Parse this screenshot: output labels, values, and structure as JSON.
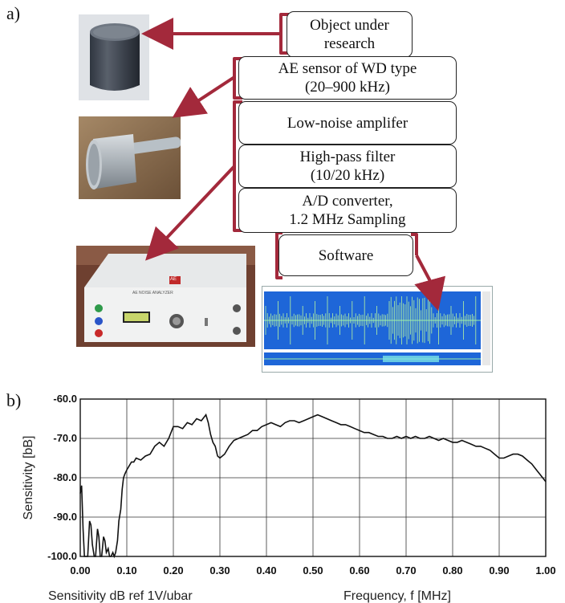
{
  "panel_a": {
    "label": "a)",
    "boxes": [
      {
        "id": "object",
        "lines": [
          "Object under",
          "research"
        ]
      },
      {
        "id": "sensor",
        "lines": [
          "AE sensor of WD type",
          "(20–900 kHz)"
        ]
      },
      {
        "id": "amplifier",
        "lines": [
          "Low-noise amplifer"
        ]
      },
      {
        "id": "filter",
        "lines": [
          "High-pass filter",
          "(10/20 kHz)"
        ]
      },
      {
        "id": "adc",
        "lines": [
          "A/D converter,",
          "1.2 MHz Sampling"
        ]
      },
      {
        "id": "software",
        "lines": [
          "Software"
        ]
      }
    ],
    "device_label": "AE NOISE ANALYZER",
    "device_badge": "AE",
    "arrow_color": "#a3293b"
  },
  "panel_b": {
    "label": "b)",
    "chart_data": {
      "type": "line",
      "xlabel": "Frequency, f  [MHz]",
      "ylabel": "Sensitivity  [bB]",
      "note": "Sensitivity dB ref 1V/ubar",
      "xlim": [
        0,
        1.0
      ],
      "ylim": [
        -100,
        -60
      ],
      "x_ticks": [
        "0.00",
        "0.10",
        "0.20",
        "0.30",
        "0.40",
        "0.50",
        "0.60",
        "0.70",
        "0.80",
        "0.90",
        "1.00"
      ],
      "y_ticks": [
        "-60.0",
        "-70.0",
        "-80.0",
        "-90.0",
        "-100.0"
      ],
      "grid": true,
      "series": [
        {
          "x": [
            0.0,
            0.003,
            0.006,
            0.009,
            0.012,
            0.016,
            0.02,
            0.023,
            0.026,
            0.03,
            0.033,
            0.037,
            0.04,
            0.043,
            0.046,
            0.05,
            0.053,
            0.056,
            0.06,
            0.063,
            0.066,
            0.07,
            0.073,
            0.076,
            0.08,
            0.083,
            0.087,
            0.09,
            0.093,
            0.096,
            0.1,
            0.105,
            0.11,
            0.115,
            0.12,
            0.13,
            0.14,
            0.15,
            0.16,
            0.17,
            0.18,
            0.19,
            0.2,
            0.21,
            0.22,
            0.23,
            0.24,
            0.25,
            0.26,
            0.27,
            0.275,
            0.28,
            0.285,
            0.29,
            0.295,
            0.3,
            0.31,
            0.32,
            0.33,
            0.34,
            0.35,
            0.36,
            0.37,
            0.38,
            0.39,
            0.4,
            0.41,
            0.42,
            0.43,
            0.44,
            0.45,
            0.46,
            0.47,
            0.48,
            0.49,
            0.5,
            0.51,
            0.52,
            0.53,
            0.54,
            0.55,
            0.56,
            0.57,
            0.58,
            0.59,
            0.6,
            0.61,
            0.62,
            0.63,
            0.64,
            0.65,
            0.66,
            0.67,
            0.68,
            0.69,
            0.7,
            0.71,
            0.72,
            0.73,
            0.74,
            0.75,
            0.76,
            0.77,
            0.78,
            0.79,
            0.8,
            0.81,
            0.82,
            0.83,
            0.84,
            0.85,
            0.86,
            0.87,
            0.88,
            0.89,
            0.9,
            0.91,
            0.92,
            0.93,
            0.94,
            0.95,
            0.96,
            0.97,
            0.98,
            0.99,
            1.0
          ],
          "y": [
            -84,
            -82,
            -93,
            -100,
            -100,
            -100,
            -91,
            -92,
            -97,
            -100,
            -100,
            -93,
            -95,
            -100,
            -100,
            -95,
            -96,
            -99,
            -98,
            -100,
            -100,
            -99,
            -100,
            -99,
            -96,
            -91,
            -88,
            -83,
            -80,
            -79,
            -78,
            -77,
            -76,
            -76,
            -75,
            -75.5,
            -74.5,
            -74,
            -72,
            -71,
            -72,
            -70,
            -67,
            -67,
            -67.5,
            -66,
            -66.5,
            -65,
            -65.5,
            -64,
            -66,
            -69,
            -71,
            -72,
            -74.5,
            -75,
            -74,
            -72,
            -70.5,
            -70,
            -69.5,
            -69,
            -68,
            -68,
            -67,
            -66.5,
            -66,
            -66.5,
            -67,
            -66,
            -65.5,
            -65.5,
            -66,
            -65.5,
            -65,
            -64.5,
            -64,
            -64.5,
            -65,
            -65.5,
            -66,
            -66.5,
            -66.5,
            -67,
            -67.5,
            -68,
            -68.5,
            -68.5,
            -69,
            -69.5,
            -69.5,
            -70,
            -70,
            -69.5,
            -70,
            -69.5,
            -70,
            -69.5,
            -70,
            -70,
            -69.5,
            -70,
            -70.5,
            -70,
            -70.5,
            -71,
            -71,
            -70.5,
            -71,
            -71.5,
            -72,
            -72,
            -72.5,
            -73,
            -74,
            -75,
            -75,
            -74.5,
            -74,
            -74,
            -74.5,
            -75.5,
            -76.5,
            -78,
            -79.5,
            -81
          ]
        }
      ]
    }
  }
}
